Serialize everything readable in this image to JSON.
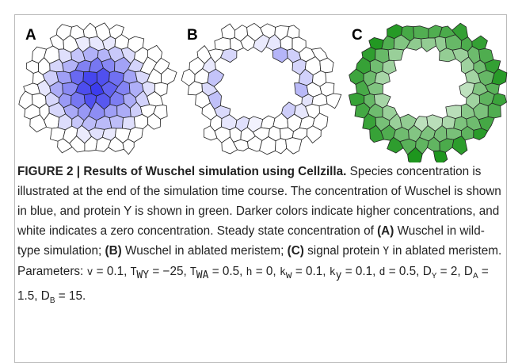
{
  "panels": [
    {
      "label": "A"
    },
    {
      "label": "B"
    },
    {
      "label": "C"
    }
  ],
  "caption": {
    "segments": [
      {
        "text": "FIGURE 2 | Results of Wuschel simulation using Cellzilla.",
        "style": "bold"
      },
      {
        "text": " Species concentration is illustrated at the end of the simulation time course. The concentration of Wuschel is shown in blue, and protein Y is shown in green. Darker colors indicate higher concentrations, and white indicates a zero concentration. Steady state concentration of ",
        "style": "plain"
      },
      {
        "text": "(A)",
        "style": "bold"
      },
      {
        "text": " Wuschel in wild-type simulation; ",
        "style": "plain"
      },
      {
        "text": "(B)",
        "style": "bold"
      },
      {
        "text": " Wuschel in ablated meristem; ",
        "style": "plain"
      },
      {
        "text": "(C)",
        "style": "bold"
      },
      {
        "text": " signal protein ",
        "style": "plain"
      },
      {
        "text": "Y",
        "style": "mono"
      },
      {
        "text": " in ablated meristem. Parameters: ",
        "style": "plain"
      },
      {
        "text": "v",
        "style": "mono"
      },
      {
        "text": " = 0.1, ",
        "style": "plain"
      },
      {
        "text": "T",
        "style": "mono",
        "sub": "WY"
      },
      {
        "text": " = −25, ",
        "style": "plain"
      },
      {
        "text": "T",
        "style": "mono",
        "sub": "WA"
      },
      {
        "text": " = 0.5, ",
        "style": "plain"
      },
      {
        "text": "h",
        "style": "mono"
      },
      {
        "text": " = 0, ",
        "style": "plain"
      },
      {
        "text": "k",
        "style": "mono",
        "sub": "w"
      },
      {
        "text": " = 0.1, ",
        "style": "plain"
      },
      {
        "text": "k",
        "style": "mono",
        "sub": "y"
      },
      {
        "text": " = 0.1, ",
        "style": "plain"
      },
      {
        "text": "d",
        "style": "mono"
      },
      {
        "text": " = 0.5, ",
        "style": "plain"
      },
      {
        "text": "D",
        "style": "plain",
        "sub": "Y"
      },
      {
        "text": " = 2, ",
        "style": "plain"
      },
      {
        "text": "D",
        "style": "plain",
        "sub": "A"
      },
      {
        "text": " = 1.5, ",
        "style": "plain"
      },
      {
        "text": "D",
        "style": "plain",
        "sub": "B"
      },
      {
        "text": " = 15.",
        "style": "plain"
      }
    ]
  }
}
